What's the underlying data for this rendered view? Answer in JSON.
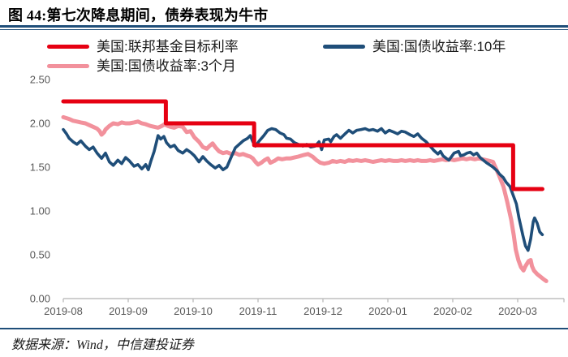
{
  "figure": {
    "title": "图 44:第七次降息期间，债券表现为牛市",
    "source": "数据来源：Wind，中信建投证券"
  },
  "colors": {
    "rule_navy": "#1f4e79",
    "axis_text": "#595959",
    "axis_line": "#bfbfbf",
    "background": "#ffffff"
  },
  "chart_data": {
    "type": "line",
    "title": "图 44:第七次降息期间，债券表现为牛市",
    "xlabel": "",
    "ylabel": "",
    "x_unit": "months since 2019-08-01",
    "xlim": [
      0,
      7.71
    ],
    "ylim": [
      0,
      2.5
    ],
    "grid": false,
    "legend_position": "top",
    "y_ticks": [
      "0.00",
      "0.50",
      "1.00",
      "1.50",
      "2.00",
      "2.50"
    ],
    "x_ticks": [
      "2019-08",
      "2019-09",
      "2019-10",
      "2019-11",
      "2019-12",
      "2020-01",
      "2020-02",
      "2020-03"
    ],
    "series": [
      {
        "name": "美国:联邦基金目标利率",
        "color": "#e60012",
        "width": 5,
        "points": [
          [
            0,
            2.25
          ],
          [
            1.58,
            2.25
          ],
          [
            1.58,
            2.0
          ],
          [
            2.94,
            2.0
          ],
          [
            2.94,
            1.75
          ],
          [
            6.93,
            1.75
          ],
          [
            6.93,
            1.25
          ],
          [
            7.38,
            1.25
          ]
        ]
      },
      {
        "name": "美国:国债收益率:10年",
        "color": "#1f4e79",
        "width": 3.6,
        "points": [
          [
            0,
            1.93
          ],
          [
            0.05,
            1.88
          ],
          [
            0.09,
            1.83
          ],
          [
            0.15,
            1.79
          ],
          [
            0.21,
            1.76
          ],
          [
            0.27,
            1.8
          ],
          [
            0.34,
            1.74
          ],
          [
            0.4,
            1.7
          ],
          [
            0.46,
            1.73
          ],
          [
            0.52,
            1.66
          ],
          [
            0.59,
            1.6
          ],
          [
            0.65,
            1.66
          ],
          [
            0.71,
            1.56
          ],
          [
            0.77,
            1.52
          ],
          [
            0.84,
            1.58
          ],
          [
            0.9,
            1.54
          ],
          [
            0.96,
            1.61
          ],
          [
            1.02,
            1.57
          ],
          [
            1.09,
            1.51
          ],
          [
            1.15,
            1.53
          ],
          [
            1.21,
            1.48
          ],
          [
            1.27,
            1.53
          ],
          [
            1.31,
            1.47
          ],
          [
            1.35,
            1.57
          ],
          [
            1.4,
            1.68
          ],
          [
            1.46,
            1.86
          ],
          [
            1.5,
            1.82
          ],
          [
            1.55,
            1.85
          ],
          [
            1.59,
            1.78
          ],
          [
            1.65,
            1.73
          ],
          [
            1.71,
            1.75
          ],
          [
            1.77,
            1.69
          ],
          [
            1.84,
            1.66
          ],
          [
            1.9,
            1.7
          ],
          [
            1.96,
            1.67
          ],
          [
            2.02,
            1.63
          ],
          [
            2.09,
            1.56
          ],
          [
            2.15,
            1.62
          ],
          [
            2.21,
            1.57
          ],
          [
            2.27,
            1.53
          ],
          [
            2.34,
            1.49
          ],
          [
            2.4,
            1.52
          ],
          [
            2.46,
            1.47
          ],
          [
            2.52,
            1.5
          ],
          [
            2.59,
            1.62
          ],
          [
            2.65,
            1.72
          ],
          [
            2.71,
            1.76
          ],
          [
            2.77,
            1.8
          ],
          [
            2.84,
            1.83
          ],
          [
            2.88,
            1.86
          ],
          [
            2.92,
            1.79
          ],
          [
            2.96,
            1.74
          ],
          [
            3.02,
            1.8
          ],
          [
            3.09,
            1.86
          ],
          [
            3.15,
            1.92
          ],
          [
            3.21,
            1.94
          ],
          [
            3.27,
            1.93
          ],
          [
            3.34,
            1.89
          ],
          [
            3.4,
            1.87
          ],
          [
            3.44,
            1.83
          ],
          [
            3.5,
            1.82
          ],
          [
            3.56,
            1.78
          ],
          [
            3.62,
            1.76
          ],
          [
            3.69,
            1.74
          ],
          [
            3.75,
            1.76
          ],
          [
            3.81,
            1.73
          ],
          [
            3.88,
            1.74
          ],
          [
            3.94,
            1.79
          ],
          [
            3.98,
            1.7
          ],
          [
            4.02,
            1.81
          ],
          [
            4.09,
            1.82
          ],
          [
            4.12,
            1.79
          ],
          [
            4.17,
            1.85
          ],
          [
            4.21,
            1.87
          ],
          [
            4.27,
            1.83
          ],
          [
            4.34,
            1.88
          ],
          [
            4.4,
            1.92
          ],
          [
            4.46,
            1.89
          ],
          [
            4.52,
            1.92
          ],
          [
            4.59,
            1.93
          ],
          [
            4.65,
            1.94
          ],
          [
            4.71,
            1.92
          ],
          [
            4.77,
            1.93
          ],
          [
            4.84,
            1.91
          ],
          [
            4.9,
            1.94
          ],
          [
            4.96,
            1.89
          ],
          [
            5.02,
            1.92
          ],
          [
            5.09,
            1.9
          ],
          [
            5.15,
            1.88
          ],
          [
            5.21,
            1.91
          ],
          [
            5.27,
            1.9
          ],
          [
            5.34,
            1.87
          ],
          [
            5.4,
            1.85
          ],
          [
            5.46,
            1.88
          ],
          [
            5.52,
            1.83
          ],
          [
            5.59,
            1.79
          ],
          [
            5.65,
            1.74
          ],
          [
            5.71,
            1.69
          ],
          [
            5.77,
            1.65
          ],
          [
            5.81,
            1.68
          ],
          [
            5.85,
            1.63
          ],
          [
            5.9,
            1.6
          ],
          [
            5.94,
            1.58
          ],
          [
            5.99,
            1.63
          ],
          [
            6.02,
            1.66
          ],
          [
            6.09,
            1.68
          ],
          [
            6.12,
            1.63
          ],
          [
            6.17,
            1.64
          ],
          [
            6.22,
            1.66
          ],
          [
            6.27,
            1.67
          ],
          [
            6.32,
            1.64
          ],
          [
            6.37,
            1.66
          ],
          [
            6.42,
            1.61
          ],
          [
            6.47,
            1.58
          ],
          [
            6.52,
            1.55
          ],
          [
            6.58,
            1.52
          ],
          [
            6.62,
            1.5
          ],
          [
            6.68,
            1.46
          ],
          [
            6.72,
            1.42
          ],
          [
            6.78,
            1.38
          ],
          [
            6.82,
            1.33
          ],
          [
            6.88,
            1.28
          ],
          [
            6.92,
            1.2
          ],
          [
            6.98,
            1.08
          ],
          [
            7.02,
            0.92
          ],
          [
            7.08,
            0.72
          ],
          [
            7.12,
            0.6
          ],
          [
            7.16,
            0.55
          ],
          [
            7.2,
            0.68
          ],
          [
            7.24,
            0.88
          ],
          [
            7.26,
            0.92
          ],
          [
            7.3,
            0.86
          ],
          [
            7.34,
            0.76
          ],
          [
            7.38,
            0.73
          ]
        ]
      },
      {
        "name": "美国:国债收益率:3个月",
        "color": "#f2919c",
        "width": 5,
        "points": [
          [
            0,
            2.07
          ],
          [
            0.09,
            2.05
          ],
          [
            0.15,
            2.03
          ],
          [
            0.21,
            2.02
          ],
          [
            0.27,
            2.01
          ],
          [
            0.34,
            2.0
          ],
          [
            0.4,
            1.98
          ],
          [
            0.46,
            1.96
          ],
          [
            0.52,
            1.94
          ],
          [
            0.56,
            1.91
          ],
          [
            0.59,
            1.87
          ],
          [
            0.63,
            1.9
          ],
          [
            0.65,
            1.93
          ],
          [
            0.71,
            1.97
          ],
          [
            0.77,
            2.0
          ],
          [
            0.84,
            1.99
          ],
          [
            0.9,
            2.01
          ],
          [
            0.96,
            2.0
          ],
          [
            1.02,
            2.0
          ],
          [
            1.09,
            2.01
          ],
          [
            1.15,
            2.02
          ],
          [
            1.21,
            2.0
          ],
          [
            1.27,
            1.99
          ],
          [
            1.34,
            1.97
          ],
          [
            1.4,
            1.96
          ],
          [
            1.46,
            1.95
          ],
          [
            1.52,
            1.97
          ],
          [
            1.56,
            1.99
          ],
          [
            1.61,
            1.97
          ],
          [
            1.65,
            1.96
          ],
          [
            1.71,
            1.95
          ],
          [
            1.77,
            1.97
          ],
          [
            1.84,
            1.96
          ],
          [
            1.9,
            1.9
          ],
          [
            1.96,
            1.91
          ],
          [
            2.02,
            1.84
          ],
          [
            2.09,
            1.79
          ],
          [
            2.15,
            1.73
          ],
          [
            2.21,
            1.71
          ],
          [
            2.25,
            1.74
          ],
          [
            2.3,
            1.77
          ],
          [
            2.35,
            1.72
          ],
          [
            2.4,
            1.68
          ],
          [
            2.46,
            1.66
          ],
          [
            2.52,
            1.67
          ],
          [
            2.59,
            1.65
          ],
          [
            2.65,
            1.66
          ],
          [
            2.71,
            1.64
          ],
          [
            2.77,
            1.65
          ],
          [
            2.84,
            1.63
          ],
          [
            2.88,
            1.62
          ],
          [
            2.92,
            1.6
          ],
          [
            2.96,
            1.56
          ],
          [
            3.0,
            1.53
          ],
          [
            3.05,
            1.55
          ],
          [
            3.1,
            1.58
          ],
          [
            3.15,
            1.6
          ],
          [
            3.19,
            1.55
          ],
          [
            3.25,
            1.57
          ],
          [
            3.31,
            1.6
          ],
          [
            3.37,
            1.59
          ],
          [
            3.44,
            1.6
          ],
          [
            3.5,
            1.6
          ],
          [
            3.56,
            1.61
          ],
          [
            3.62,
            1.62
          ],
          [
            3.71,
            1.64
          ],
          [
            3.77,
            1.65
          ],
          [
            3.84,
            1.62
          ],
          [
            3.9,
            1.58
          ],
          [
            3.96,
            1.55
          ],
          [
            4.02,
            1.54
          ],
          [
            4.09,
            1.55
          ],
          [
            4.15,
            1.57
          ],
          [
            4.21,
            1.56
          ],
          [
            4.27,
            1.57
          ],
          [
            4.34,
            1.56
          ],
          [
            4.4,
            1.58
          ],
          [
            4.46,
            1.57
          ],
          [
            4.52,
            1.58
          ],
          [
            4.59,
            1.57
          ],
          [
            4.65,
            1.58
          ],
          [
            4.71,
            1.57
          ],
          [
            4.77,
            1.56
          ],
          [
            4.84,
            1.57
          ],
          [
            4.9,
            1.58
          ],
          [
            4.96,
            1.57
          ],
          [
            5.02,
            1.58
          ],
          [
            5.09,
            1.57
          ],
          [
            5.15,
            1.57
          ],
          [
            5.21,
            1.58
          ],
          [
            5.27,
            1.57
          ],
          [
            5.34,
            1.58
          ],
          [
            5.4,
            1.57
          ],
          [
            5.46,
            1.58
          ],
          [
            5.52,
            1.57
          ],
          [
            5.59,
            1.57
          ],
          [
            5.65,
            1.58
          ],
          [
            5.71,
            1.57
          ],
          [
            5.77,
            1.58
          ],
          [
            5.84,
            1.59
          ],
          [
            5.9,
            1.58
          ],
          [
            5.96,
            1.59
          ],
          [
            6.02,
            1.58
          ],
          [
            6.09,
            1.59
          ],
          [
            6.15,
            1.6
          ],
          [
            6.21,
            1.59
          ],
          [
            6.27,
            1.6
          ],
          [
            6.34,
            1.59
          ],
          [
            6.4,
            1.6
          ],
          [
            6.46,
            1.59
          ],
          [
            6.52,
            1.58
          ],
          [
            6.57,
            1.57
          ],
          [
            6.62,
            1.56
          ],
          [
            6.65,
            1.51
          ],
          [
            6.71,
            1.41
          ],
          [
            6.78,
            1.28
          ],
          [
            6.84,
            1.1
          ],
          [
            6.9,
            0.9
          ],
          [
            6.94,
            0.72
          ],
          [
            6.97,
            0.56
          ],
          [
            7.01,
            0.44
          ],
          [
            7.05,
            0.36
          ],
          [
            7.09,
            0.32
          ],
          [
            7.12,
            0.37
          ],
          [
            7.17,
            0.43
          ],
          [
            7.2,
            0.44
          ],
          [
            7.22,
            0.37
          ],
          [
            7.25,
            0.32
          ],
          [
            7.3,
            0.28
          ],
          [
            7.35,
            0.25
          ],
          [
            7.4,
            0.22
          ],
          [
            7.44,
            0.2
          ]
        ]
      }
    ]
  }
}
